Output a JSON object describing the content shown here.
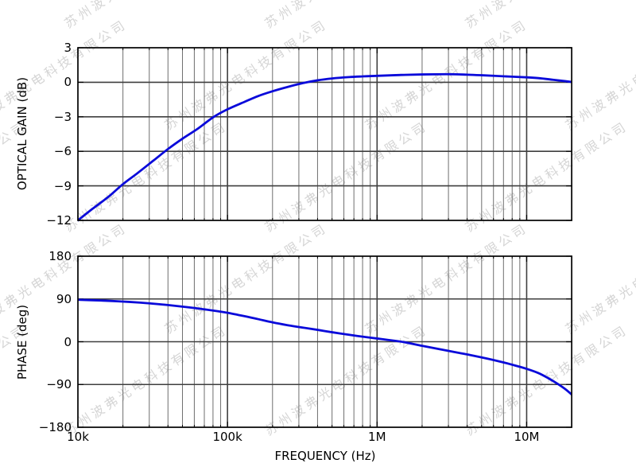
{
  "watermark": {
    "text": "苏州波弗光电科技有限公司",
    "color": "#d5d5d5"
  },
  "colors": {
    "curve": "#0a0ada",
    "grid_major": "#3f3f3f",
    "grid_minor": "#6e6e6e",
    "spine": "#000000",
    "background": "#ffffff",
    "tick_label": "#000000"
  },
  "x_axis": {
    "label": "FREQUENCY (Hz)",
    "scale": "log",
    "min_hz": 10000,
    "max_hz": 20000000,
    "major_ticks": [
      {
        "hz": 10000,
        "label": "10k"
      },
      {
        "hz": 100000,
        "label": "100k"
      },
      {
        "hz": 1000000,
        "label": "1M"
      },
      {
        "hz": 10000000,
        "label": "10M"
      }
    ]
  },
  "chart_data": [
    {
      "type": "line",
      "title": "",
      "ylabel": "OPTICAL GAIN (dB)",
      "xlabel": "",
      "x_scale": "log",
      "xlim_hz": [
        10000,
        20000000
      ],
      "ylim": [
        -12,
        3
      ],
      "yticks": [
        3,
        0,
        -3,
        -6,
        -9,
        -12
      ],
      "grid": "both",
      "legend": "none",
      "series": [
        {
          "name": "optical-gain",
          "color": "#0a0ada",
          "points_hz_db": [
            [
              10000,
              -12.0
            ],
            [
              12500,
              -11.0
            ],
            [
              16000,
              -9.95
            ],
            [
              20000,
              -8.85
            ],
            [
              25000,
              -7.9
            ],
            [
              32000,
              -6.8
            ],
            [
              40000,
              -5.8
            ],
            [
              50000,
              -4.9
            ],
            [
              63000,
              -4.05
            ],
            [
              80000,
              -3.05
            ],
            [
              100000,
              -2.35
            ],
            [
              130000,
              -1.7
            ],
            [
              160000,
              -1.2
            ],
            [
              200000,
              -0.78
            ],
            [
              250000,
              -0.42
            ],
            [
              320000,
              -0.07
            ],
            [
              400000,
              0.17
            ],
            [
              500000,
              0.33
            ],
            [
              650000,
              0.45
            ],
            [
              800000,
              0.51
            ],
            [
              1000000,
              0.56
            ],
            [
              1400000,
              0.63
            ],
            [
              2000000,
              0.68
            ],
            [
              3000000,
              0.7
            ],
            [
              4000000,
              0.66
            ],
            [
              5000000,
              0.61
            ],
            [
              7000000,
              0.52
            ],
            [
              10000000,
              0.43
            ],
            [
              12000000,
              0.36
            ],
            [
              15000000,
              0.22
            ],
            [
              18000000,
              0.1
            ],
            [
              20000000,
              0.03
            ]
          ]
        }
      ]
    },
    {
      "type": "line",
      "title": "",
      "ylabel": "PHASE (deg)",
      "xlabel": "FREQUENCY (Hz)",
      "x_scale": "log",
      "xlim_hz": [
        10000,
        20000000
      ],
      "ylim": [
        -180,
        180
      ],
      "yticks": [
        180,
        90,
        0,
        -90,
        -180
      ],
      "grid": "both",
      "legend": "none",
      "series": [
        {
          "name": "phase",
          "color": "#0a0ada",
          "points_hz_deg": [
            [
              10000,
              88.3
            ],
            [
              13000,
              87.2
            ],
            [
              17000,
              85.7
            ],
            [
              22000,
              83.8
            ],
            [
              30000,
              80.8
            ],
            [
              40000,
              77.2
            ],
            [
              55000,
              72.4
            ],
            [
              70000,
              68.2
            ],
            [
              85000,
              64.4
            ],
            [
              100000,
              61.0
            ],
            [
              130000,
              53.8
            ],
            [
              160000,
              47.6
            ],
            [
              200000,
              40.8
            ],
            [
              250000,
              35.0
            ],
            [
              300000,
              31.0
            ],
            [
              400000,
              25.0
            ],
            [
              500000,
              20.0
            ],
            [
              650000,
              14.6
            ],
            [
              800000,
              10.6
            ],
            [
              1000000,
              6.8
            ],
            [
              1200000,
              3.6
            ],
            [
              1500000,
              -0.6
            ],
            [
              2000000,
              -8.6
            ],
            [
              2600000,
              -15.4
            ],
            [
              3300000,
              -21.8
            ],
            [
              4200000,
              -28.0
            ],
            [
              5500000,
              -35.8
            ],
            [
              7000000,
              -43.6
            ],
            [
              8500000,
              -50.6
            ],
            [
              10000000,
              -57.0
            ],
            [
              12000000,
              -66.0
            ],
            [
              14000000,
              -77.0
            ],
            [
              16000000,
              -88.0
            ],
            [
              18000000,
              -99.0
            ],
            [
              20000000,
              -111.0
            ]
          ]
        }
      ]
    }
  ]
}
